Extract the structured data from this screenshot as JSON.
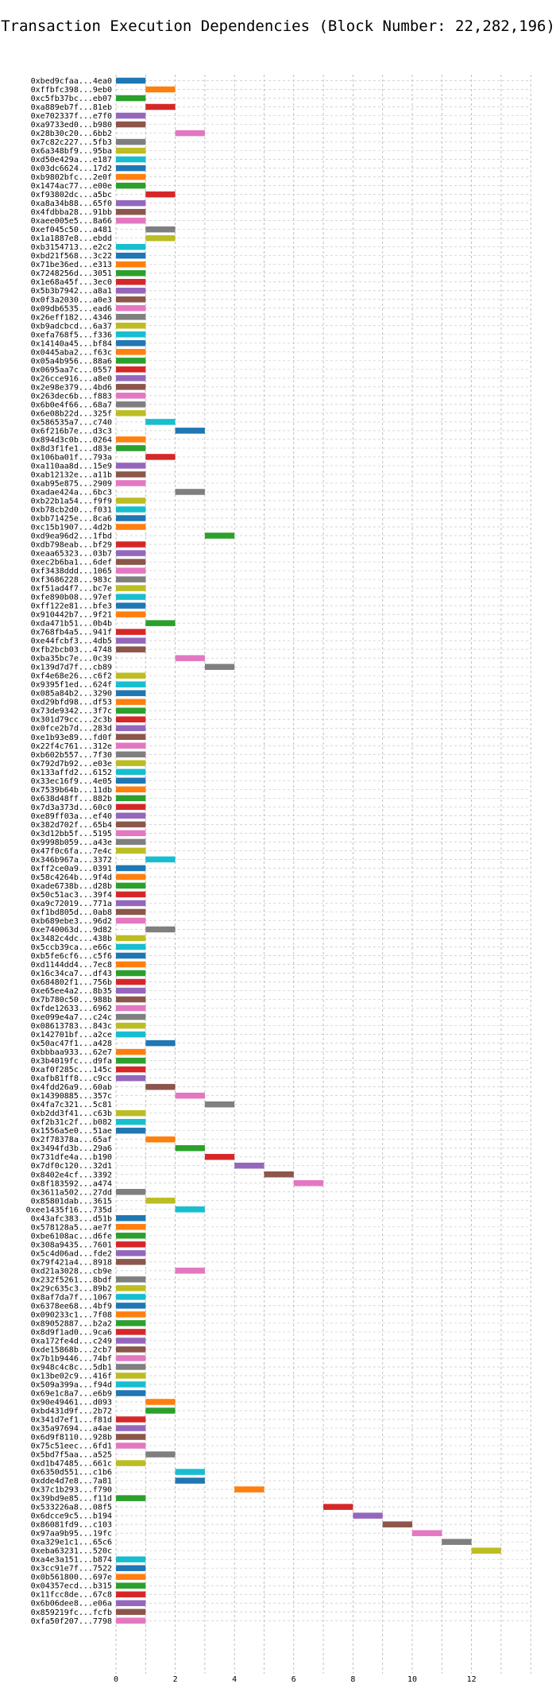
{
  "chart_data": {
    "type": "bar",
    "orientation": "horizontal",
    "title": "Transaction Execution Dependencies (Block Number: 22,282,196)",
    "xlabel": "",
    "ylabel": "",
    "xlim": [
      0,
      14
    ],
    "xticks": [
      0,
      2,
      4,
      6,
      8,
      10,
      12
    ],
    "grid": true,
    "palette": [
      "#1f77b4",
      "#ff7f0e",
      "#2ca02c",
      "#d62728",
      "#9467bd",
      "#8c564b",
      "#e377c2",
      "#7f7f7f",
      "#bcbd22",
      "#17becf"
    ],
    "transactions": [
      {
        "label": "0xbed9cfaa...4ea0",
        "start": 0
      },
      {
        "label": "0xffbfc398...9eb0",
        "start": 1
      },
      {
        "label": "0xc5fb37bc...eb07",
        "start": 0
      },
      {
        "label": "0xa889eb7f...81eb",
        "start": 1
      },
      {
        "label": "0xe702337f...e7f0",
        "start": 0
      },
      {
        "label": "0xa9733ed0...b980",
        "start": 0
      },
      {
        "label": "0x28b30c20...6bb2",
        "start": 2
      },
      {
        "label": "0x7c82c227...5fb3",
        "start": 0
      },
      {
        "label": "0x6a348bf9...95ba",
        "start": 0
      },
      {
        "label": "0xd50e429a...e187",
        "start": 0
      },
      {
        "label": "0x03dc6624...17d2",
        "start": 0
      },
      {
        "label": "0xb9802bfc...2e0f",
        "start": 0
      },
      {
        "label": "0x1474ac77...e00e",
        "start": 0
      },
      {
        "label": "0xf93802dc...a5bc",
        "start": 1
      },
      {
        "label": "0xa8a34b88...65f0",
        "start": 0
      },
      {
        "label": "0x4fdbba28...91bb",
        "start": 0
      },
      {
        "label": "0xaee005e5...8a66",
        "start": 0
      },
      {
        "label": "0xef045c50...a481",
        "start": 1
      },
      {
        "label": "0x1a1887e8...ebdd",
        "start": 1
      },
      {
        "label": "0xb3154713...e2c2",
        "start": 0
      },
      {
        "label": "0xbd21f568...3c22",
        "start": 0
      },
      {
        "label": "0x71be36ed...e313",
        "start": 0
      },
      {
        "label": "0x7248256d...3051",
        "start": 0
      },
      {
        "label": "0x1e68a45f...3ec0",
        "start": 0
      },
      {
        "label": "0x5b3b7942...a8a1",
        "start": 0
      },
      {
        "label": "0x0f3a2030...a0e3",
        "start": 0
      },
      {
        "label": "0x09db6535...ead6",
        "start": 0
      },
      {
        "label": "0x26eff182...4346",
        "start": 0
      },
      {
        "label": "0xb9adcbcd...6a37",
        "start": 0
      },
      {
        "label": "0xefa768f5...f336",
        "start": 0
      },
      {
        "label": "0x14140a45...bf84",
        "start": 0
      },
      {
        "label": "0x0445aba2...f63c",
        "start": 0
      },
      {
        "label": "0x05a4b956...88a6",
        "start": 0
      },
      {
        "label": "0x0695aa7c...0557",
        "start": 0
      },
      {
        "label": "0x26cce916...a8e0",
        "start": 0
      },
      {
        "label": "0x2e98e379...4bd6",
        "start": 0
      },
      {
        "label": "0x263dec6b...f883",
        "start": 0
      },
      {
        "label": "0x6b0e4f66...68a7",
        "start": 0
      },
      {
        "label": "0x6e08b22d...325f",
        "start": 0
      },
      {
        "label": "0x586535a7...c740",
        "start": 1
      },
      {
        "label": "0x6f216b7e...d3c3",
        "start": 2
      },
      {
        "label": "0x894d3c0b...0264",
        "start": 0
      },
      {
        "label": "0x8d3f1fe1...d83e",
        "start": 0
      },
      {
        "label": "0x106ba01f...793a",
        "start": 1
      },
      {
        "label": "0xa110aa8d...15e9",
        "start": 0
      },
      {
        "label": "0xab12132e...a11b",
        "start": 0
      },
      {
        "label": "0xab95e875...2909",
        "start": 0
      },
      {
        "label": "0xadae424a...6bc3",
        "start": 2
      },
      {
        "label": "0xb22b1a54...f9f9",
        "start": 0
      },
      {
        "label": "0xb78cb2d0...f031",
        "start": 0
      },
      {
        "label": "0xbb71425e...8ca6",
        "start": 0
      },
      {
        "label": "0xc15b1907...4d2b",
        "start": 0
      },
      {
        "label": "0xd9ea96d2...1fbd",
        "start": 3
      },
      {
        "label": "0xdb798eab...bf29",
        "start": 0
      },
      {
        "label": "0xeaa65323...03b7",
        "start": 0
      },
      {
        "label": "0xec2b6ba1...6def",
        "start": 0
      },
      {
        "label": "0xf3438ddd...1065",
        "start": 0
      },
      {
        "label": "0xf3686228...983c",
        "start": 0
      },
      {
        "label": "0xf51ad4f7...bc7e",
        "start": 0
      },
      {
        "label": "0xfe890b08...97ef",
        "start": 0
      },
      {
        "label": "0xff122e81...bfe3",
        "start": 0
      },
      {
        "label": "0x910442b7...9f21",
        "start": 0
      },
      {
        "label": "0xda471b51...0b4b",
        "start": 1
      },
      {
        "label": "0x768fb4a5...941f",
        "start": 0
      },
      {
        "label": "0xe44fcbf3...4db5",
        "start": 0
      },
      {
        "label": "0xfb2bcb03...4748",
        "start": 0
      },
      {
        "label": "0xba35bc7e...0c39",
        "start": 2
      },
      {
        "label": "0x139d7d7f...cb89",
        "start": 3
      },
      {
        "label": "0xf4e68e26...c6f2",
        "start": 0
      },
      {
        "label": "0x9395f1ed...624f",
        "start": 0
      },
      {
        "label": "0x085a84b2...3290",
        "start": 0
      },
      {
        "label": "0xd29bfd98...df53",
        "start": 0
      },
      {
        "label": "0x73de9342...3f7c",
        "start": 0
      },
      {
        "label": "0x301d79cc...2c3b",
        "start": 0
      },
      {
        "label": "0x0fce2b7d...283d",
        "start": 0
      },
      {
        "label": "0xe1b93e89...fd0f",
        "start": 0
      },
      {
        "label": "0x22f4c761...312e",
        "start": 0
      },
      {
        "label": "0xb602b557...7f30",
        "start": 0
      },
      {
        "label": "0x792d7b92...e03e",
        "start": 0
      },
      {
        "label": "0x133affd2...6152",
        "start": 0
      },
      {
        "label": "0x33ec16f9...4e05",
        "start": 0
      },
      {
        "label": "0x7539b64b...11db",
        "start": 0
      },
      {
        "label": "0x638d48ff...882b",
        "start": 0
      },
      {
        "label": "0x7d3a373d...60c0",
        "start": 0
      },
      {
        "label": "0xe89ff03a...ef40",
        "start": 0
      },
      {
        "label": "0x382d702f...65b4",
        "start": 0
      },
      {
        "label": "0x3d12bb5f...5195",
        "start": 0
      },
      {
        "label": "0x9998b059...a43e",
        "start": 0
      },
      {
        "label": "0x47f0c6fa...7e4c",
        "start": 0
      },
      {
        "label": "0x346b967a...3372",
        "start": 1
      },
      {
        "label": "0xff2ce0a9...0391",
        "start": 0
      },
      {
        "label": "0x58c4264b...9f4d",
        "start": 0
      },
      {
        "label": "0xade6738b...d28b",
        "start": 0
      },
      {
        "label": "0x50c51ac3...39f4",
        "start": 0
      },
      {
        "label": "0xa9c72019...771a",
        "start": 0
      },
      {
        "label": "0xf1bd805d...0ab8",
        "start": 0
      },
      {
        "label": "0xb689ebe3...96d2",
        "start": 0
      },
      {
        "label": "0xe740063d...9d82",
        "start": 1
      },
      {
        "label": "0x3482c4dc...438b",
        "start": 0
      },
      {
        "label": "0x5ccb39ca...e66c",
        "start": 0
      },
      {
        "label": "0xb5fe6cf6...c5f6",
        "start": 0
      },
      {
        "label": "0xd1144dd4...7ec8",
        "start": 0
      },
      {
        "label": "0x16c34ca7...df43",
        "start": 0
      },
      {
        "label": "0x684802f1...756b",
        "start": 0
      },
      {
        "label": "0xe65ee4a2...8b35",
        "start": 0
      },
      {
        "label": "0x7b780c50...988b",
        "start": 0
      },
      {
        "label": "0xfde12633...6962",
        "start": 0
      },
      {
        "label": "0xe099e4a7...c24c",
        "start": 0
      },
      {
        "label": "0x08613783...843c",
        "start": 0
      },
      {
        "label": "0x142701bf...a2ce",
        "start": 0
      },
      {
        "label": "0x50ac47f1...a428",
        "start": 1
      },
      {
        "label": "0xbbbaa933...62e7",
        "start": 0
      },
      {
        "label": "0x3b4019fc...d9fa",
        "start": 0
      },
      {
        "label": "0xaf0f285c...145c",
        "start": 0
      },
      {
        "label": "0xafb81ff8...c9cc",
        "start": 0
      },
      {
        "label": "0x4fdd26a9...60ab",
        "start": 1
      },
      {
        "label": "0x14390885...357c",
        "start": 2
      },
      {
        "label": "0x4fa7c321...5c81",
        "start": 3
      },
      {
        "label": "0xb2dd3f41...c63b",
        "start": 0
      },
      {
        "label": "0xf2b31c2f...b082",
        "start": 0
      },
      {
        "label": "0x1556a5e0...51ae",
        "start": 0
      },
      {
        "label": "0x2f78378a...65af",
        "start": 1
      },
      {
        "label": "0x3494fd3b...29a6",
        "start": 2
      },
      {
        "label": "0x731dfe4a...b190",
        "start": 3
      },
      {
        "label": "0x7df0c120...32d1",
        "start": 4
      },
      {
        "label": "0x8402e4cf...3392",
        "start": 5
      },
      {
        "label": "0x8f183592...a474",
        "start": 6
      },
      {
        "label": "0x3611a502...27dd",
        "start": 0
      },
      {
        "label": "0x85801dab...3615",
        "start": 1
      },
      {
        "label": "0xee1435f16...735d",
        "start": 2
      },
      {
        "label": "0x43afc383...d51b",
        "start": 0
      },
      {
        "label": "0x578128a5...ae7f",
        "start": 0
      },
      {
        "label": "0xbe6108ac...d6fe",
        "start": 0
      },
      {
        "label": "0x308a9435...7601",
        "start": 0
      },
      {
        "label": "0x5c4d06ad...fde2",
        "start": 0
      },
      {
        "label": "0x79f421a4...8918",
        "start": 0
      },
      {
        "label": "0xd21a3028...cb9e",
        "start": 2
      },
      {
        "label": "0x232f5261...8bdf",
        "start": 0
      },
      {
        "label": "0x29c635c3...89b2",
        "start": 0
      },
      {
        "label": "0x8af7da7f...1067",
        "start": 0
      },
      {
        "label": "0x6378ee68...4bf9",
        "start": 0
      },
      {
        "label": "0x090233c1...7f08",
        "start": 0
      },
      {
        "label": "0x89052887...b2a2",
        "start": 0
      },
      {
        "label": "0x8d9f1ad0...9ca6",
        "start": 0
      },
      {
        "label": "0xa172fe4d...c249",
        "start": 0
      },
      {
        "label": "0xde15868b...2cb7",
        "start": 0
      },
      {
        "label": "0x7b1b9446...74bf",
        "start": 0
      },
      {
        "label": "0x948c4c8c...5db1",
        "start": 0
      },
      {
        "label": "0x13be02c9...416f",
        "start": 0
      },
      {
        "label": "0x509a399a...f94d",
        "start": 0
      },
      {
        "label": "0x69e1c8a7...e6b9",
        "start": 0
      },
      {
        "label": "0x90e49461...d093",
        "start": 1
      },
      {
        "label": "0xbd431d9f...2b72",
        "start": 1
      },
      {
        "label": "0x341d7ef1...f81d",
        "start": 0
      },
      {
        "label": "0x35a97694...a4ae",
        "start": 0
      },
      {
        "label": "0x6d9f8110...928b",
        "start": 0
      },
      {
        "label": "0x75c51eec...6fd1",
        "start": 0
      },
      {
        "label": "0x5bd7f5aa...a525",
        "start": 1
      },
      {
        "label": "0xd1b47485...661c",
        "start": 0
      },
      {
        "label": "0x6350d551...c1b6",
        "start": 2
      },
      {
        "label": "0xdde4d7e8...7a81",
        "start": 2
      },
      {
        "label": "0x37c1b293...f790",
        "start": 4
      },
      {
        "label": "0x39bd9e85...f11d",
        "start": 0
      },
      {
        "label": "0x533226a8...08f5",
        "start": 7
      },
      {
        "label": "0x6dcce9c5...b194",
        "start": 8
      },
      {
        "label": "0x86081fd9...c103",
        "start": 9
      },
      {
        "label": "0x97aa9b95...19fc",
        "start": 10
      },
      {
        "label": "0xa329e1c1...65c6",
        "start": 11
      },
      {
        "label": "0xeba63231...520c",
        "start": 12
      },
      {
        "label": "0xa4e3a151...b874",
        "start": 0
      },
      {
        "label": "0x3cc91e7f...7522",
        "start": 0
      },
      {
        "label": "0x0b561800...697e",
        "start": 0
      },
      {
        "label": "0x04357ecd...b315",
        "start": 0
      },
      {
        "label": "0x11fcc8de...67c8",
        "start": 0
      },
      {
        "label": "0x6b06dee8...e06a",
        "start": 0
      },
      {
        "label": "0x859219fc...fcfb",
        "start": 0
      },
      {
        "label": "0xfa50f207...7798",
        "start": 0
      }
    ]
  }
}
